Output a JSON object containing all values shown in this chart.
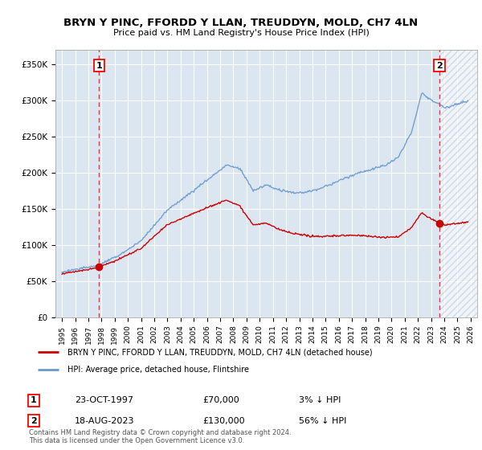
{
  "title": "BRYN Y PINC, FFORDD Y LLAN, TREUDDYN, MOLD, CH7 4LN",
  "subtitle": "Price paid vs. HM Land Registry's House Price Index (HPI)",
  "legend_label_red": "BRYN Y PINC, FFORDD Y LLAN, TREUDDYN, MOLD, CH7 4LN (detached house)",
  "legend_label_blue": "HPI: Average price, detached house, Flintshire",
  "footnote": "Contains HM Land Registry data © Crown copyright and database right 2024.\nThis data is licensed under the Open Government Licence v3.0.",
  "sale1_date_label": "23-OCT-1997",
  "sale1_price": 70000,
  "sale1_hpi_diff": "3% ↓ HPI",
  "sale2_date_label": "18-AUG-2023",
  "sale2_price": 130000,
  "sale2_hpi_diff": "56% ↓ HPI",
  "sale1_x": 1997.81,
  "sale2_x": 2023.63,
  "sale1_y": 70000,
  "sale2_y": 130000,
  "ylim": [
    0,
    370000
  ],
  "xlim": [
    1994.5,
    2026.5
  ],
  "background_color": "#dce6f1",
  "red_line_color": "#cc0000",
  "blue_line_color": "#6699cc",
  "grid_color": "#ffffff",
  "dashed_line_color": "#ee3333",
  "hatch_color": "#b8c8dc"
}
